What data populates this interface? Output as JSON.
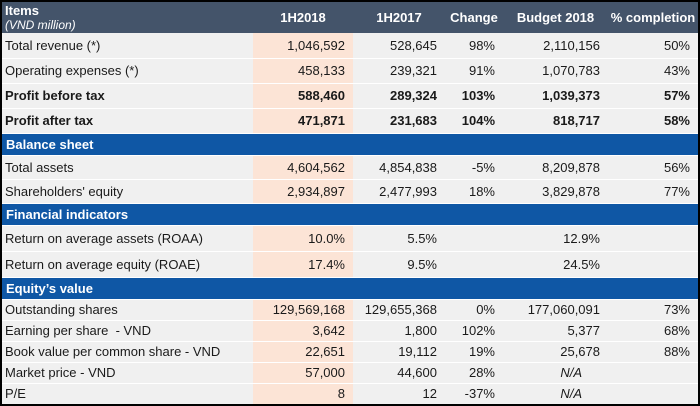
{
  "table": {
    "header": {
      "title": "Items",
      "subtitle": "(VND million)",
      "columns": [
        "1H2018",
        "1H2017",
        "Change",
        "Budget 2018",
        "% completion"
      ]
    },
    "sections": [
      {
        "title": "",
        "rows": [
          {
            "label": "Total revenue (*)",
            "bold": false,
            "values": [
              "1,046,592",
              "528,645",
              "98%",
              "2,110,156",
              "50%"
            ]
          },
          {
            "label": "Operating expenses (*)",
            "bold": false,
            "values": [
              "458,133",
              "239,321",
              "91%",
              "1,070,783",
              "43%"
            ]
          },
          {
            "label": "Profit before tax",
            "bold": true,
            "values": [
              "588,460",
              "289,324",
              "103%",
              "1,039,373",
              "57%"
            ]
          },
          {
            "label": "Profit after tax",
            "bold": true,
            "values": [
              "471,871",
              "231,683",
              "104%",
              "818,717",
              "58%"
            ]
          }
        ]
      },
      {
        "title": "Balance sheet",
        "rows": [
          {
            "label": "Total assets",
            "bold": false,
            "values": [
              "4,604,562",
              "4,854,838",
              "-5%",
              "8,209,878",
              "56%"
            ]
          },
          {
            "label": "Shareholders' equity",
            "bold": false,
            "values": [
              "2,934,897",
              "2,477,993",
              "18%",
              "3,829,878",
              "77%"
            ]
          }
        ]
      },
      {
        "title": "Financial indicators",
        "rows": [
          {
            "label": "Return on average assets (ROAA)",
            "bold": false,
            "values": [
              "10.0%",
              "5.5%",
              "",
              "12.9%",
              ""
            ]
          },
          {
            "label": "Return on average equity (ROAE)",
            "bold": false,
            "values": [
              "17.4%",
              "9.5%",
              "",
              "24.5%",
              ""
            ]
          }
        ]
      },
      {
        "title": "Equity’s value",
        "rows": [
          {
            "label": "Outstanding shares",
            "bold": false,
            "values": [
              "129,569,168",
              "129,655,368",
              "0%",
              "177,060,091",
              "73%"
            ]
          },
          {
            "label": "Earning per share  - VND",
            "bold": false,
            "values": [
              "3,642",
              "1,800",
              "102%",
              "5,377",
              "68%"
            ]
          },
          {
            "label": "Book value per common share - VND",
            "bold": false,
            "values": [
              "22,651",
              "19,112",
              "19%",
              "25,678",
              "88%"
            ]
          },
          {
            "label": "Market price - VND",
            "bold": false,
            "values": [
              "57,000",
              "44,600",
              "28%",
              "N/A",
              ""
            ]
          },
          {
            "label": "P/E",
            "bold": false,
            "values": [
              "8",
              "12",
              "-37%",
              "N/A",
              ""
            ]
          }
        ]
      }
    ],
    "colors": {
      "header_bg": "#44546A",
      "section_bg": "#0F57A5",
      "highlight_column_bg": "#FCE4D6",
      "row_bg": "#F0F0F0",
      "border": "#000000",
      "text": "#1A1A1A",
      "header_text": "#FFFFFF"
    }
  }
}
